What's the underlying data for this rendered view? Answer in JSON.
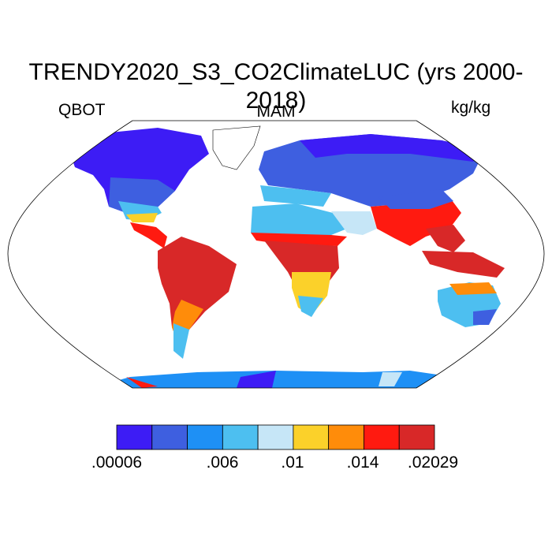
{
  "title": "TRENDY2020_S3_CO2ClimateLUC (yrs 2000-2018)",
  "left_label": "QBOT",
  "center_label": "MAM",
  "units": "kg/kg",
  "colorbar": {
    "colors": [
      "#3d1cf5",
      "#3e5fe0",
      "#1e90f5",
      "#4dbff0",
      "#c6e6f7",
      "#fbd12a",
      "#ff8c0a",
      "#ff1a10",
      "#d82828"
    ],
    "tick_labels": [
      ".00006",
      ".006",
      ".01",
      ".014",
      ".02029"
    ],
    "tick_positions_index": [
      0,
      3,
      5,
      7,
      9
    ]
  },
  "colors": {
    "ocean": "#ffffff",
    "coastline": "#000000"
  }
}
